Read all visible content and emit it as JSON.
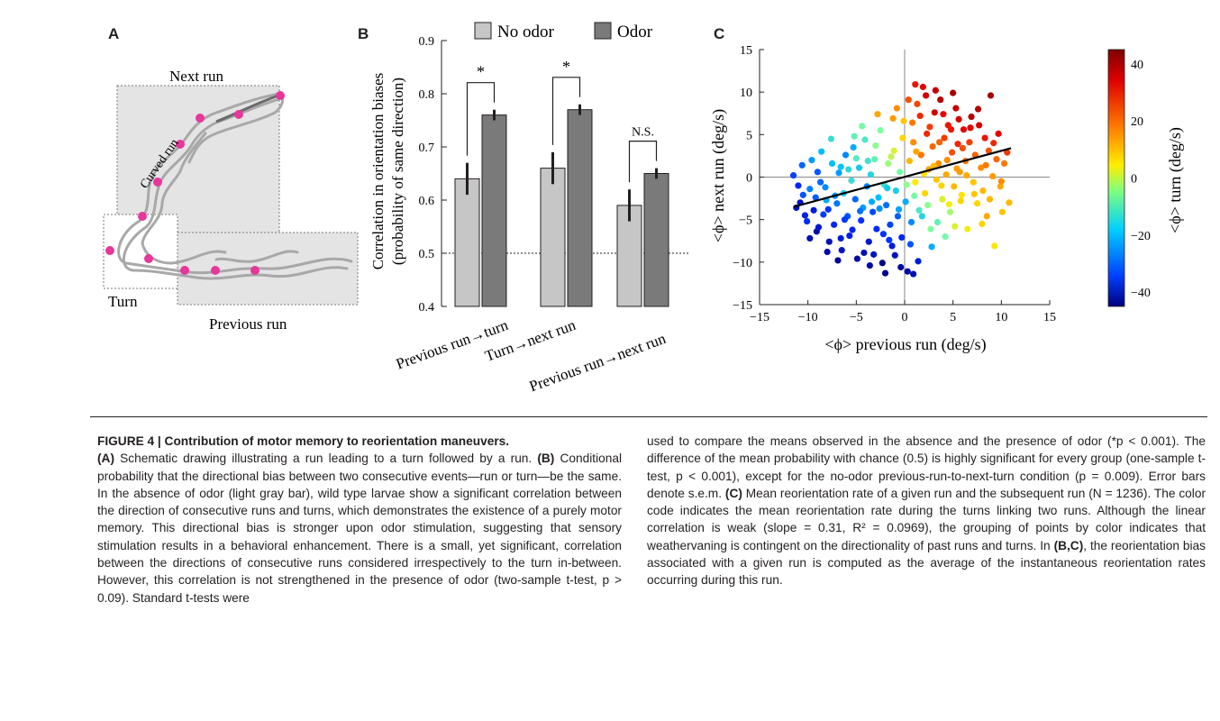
{
  "panels": {
    "a": "A",
    "b": "B",
    "c": "C"
  },
  "panel_a": {
    "next_run": "Next run",
    "curved_run": "Curved run",
    "turn": "Turn",
    "previous_run": "Previous run"
  },
  "panel_b": {
    "y_label_1": "Correlation in orientation biases",
    "y_label_2": "(probability of same direction)",
    "legend": [
      "No odor",
      "Odor"
    ],
    "colors": {
      "no_odor": "#c6c6c6",
      "odor": "#7a7a7a"
    },
    "significance": [
      "*",
      "*",
      "N.S."
    ]
  },
  "panel_c": {
    "xlabel": "<ϕ> previous run (deg/s)",
    "ylabel": "<ϕ> next run (deg/s)",
    "cbar_label": "<ϕ> turn (deg/s)"
  },
  "chart_data": [
    {
      "type": "bar",
      "categories": [
        "Previous run→turn",
        "Turn→next run",
        "Previous run→next run"
      ],
      "series": [
        {
          "name": "No odor",
          "values": [
            0.64,
            0.66,
            0.59
          ],
          "errors": [
            0.03,
            0.03,
            0.03
          ]
        },
        {
          "name": "Odor",
          "values": [
            0.76,
            0.77,
            0.65
          ],
          "errors": [
            0.01,
            0.01,
            0.01
          ]
        }
      ],
      "reference_line": 0.5,
      "ylim": [
        0.4,
        0.9
      ],
      "yticks": [
        "0.4",
        "0.5",
        "0.6",
        "0.7",
        "0.8",
        "0.9"
      ],
      "legend_position": "top"
    },
    {
      "type": "scatter",
      "xlim": [
        -15,
        15
      ],
      "ylim": [
        -15,
        15
      ],
      "xticks": [
        "−15",
        "−10",
        "−5",
        "0",
        "5",
        "10",
        "15"
      ],
      "yticks": [
        "−15",
        "−10",
        "−5",
        "0",
        "5",
        "10",
        "15"
      ],
      "fit_line": {
        "x": [
          -11.5,
          11
        ],
        "y": [
          -3.5,
          3.4
        ]
      },
      "colorbar": {
        "min": -45,
        "max": 45,
        "ticks": [
          "40",
          "20",
          "0",
          "−20",
          "−40"
        ]
      },
      "points": [
        [
          -11.2,
          -3.6,
          -40
        ],
        [
          -10.5,
          -2.1,
          -30
        ],
        [
          -10.1,
          -5.2,
          -35
        ],
        [
          -9.8,
          -1.4,
          -25
        ],
        [
          -9.4,
          -3.9,
          -38
        ],
        [
          -9.1,
          -6.4,
          -42
        ],
        [
          -8.7,
          -0.6,
          -28
        ],
        [
          -8.4,
          -4.4,
          -33
        ],
        [
          -8.1,
          -2.7,
          -20
        ],
        [
          -7.8,
          -7.6,
          -41
        ],
        [
          -7.5,
          1.6,
          -18
        ],
        [
          -7.3,
          -5.6,
          -36
        ],
        [
          -7.0,
          -3.1,
          -26
        ],
        [
          -6.8,
          0.5,
          -22
        ],
        [
          -6.5,
          -8.6,
          -40
        ],
        [
          -6.3,
          -1.9,
          -15
        ],
        [
          -6.1,
          2.6,
          -24
        ],
        [
          -5.9,
          -4.6,
          -30
        ],
        [
          -5.7,
          -6.9,
          -37
        ],
        [
          -5.5,
          -0.4,
          -12
        ],
        [
          -5.3,
          3.5,
          -20
        ],
        [
          -5.1,
          -2.6,
          -28
        ],
        [
          -4.9,
          -9.6,
          -42
        ],
        [
          -4.7,
          1.1,
          -16
        ],
        [
          -4.5,
          -5.1,
          -34
        ],
        [
          -4.3,
          -3.6,
          -22
        ],
        [
          -4.1,
          4.4,
          -10
        ],
        [
          -3.9,
          -1.1,
          -25
        ],
        [
          -3.7,
          -7.6,
          -39
        ],
        [
          -3.5,
          0.3,
          -14
        ],
        [
          -3.3,
          -4.1,
          -31
        ],
        [
          -3.1,
          2.1,
          -8
        ],
        [
          -2.9,
          -6.1,
          -35
        ],
        [
          -2.7,
          -2.4,
          -18
        ],
        [
          -2.5,
          5.5,
          -5
        ],
        [
          -2.3,
          -10.1,
          -44
        ],
        [
          -2.1,
          -0.9,
          -12
        ],
        [
          -1.9,
          -3.3,
          -27
        ],
        [
          -1.7,
          1.6,
          -3
        ],
        [
          -1.5,
          -5.6,
          -32
        ],
        [
          -1.3,
          -8.1,
          -38
        ],
        [
          -1.1,
          3.1,
          2
        ],
        [
          -0.9,
          -1.6,
          -15
        ],
        [
          -0.7,
          -4.6,
          -29
        ],
        [
          -0.5,
          0.6,
          -6
        ],
        [
          -0.3,
          -7.1,
          -36
        ],
        [
          -0.1,
          6.6,
          10
        ],
        [
          0.1,
          -2.9,
          -20
        ],
        [
          0.3,
          -11.1,
          -42
        ],
        [
          0.5,
          1.9,
          12
        ],
        [
          0.7,
          -5.3,
          -24
        ],
        [
          0.9,
          4.1,
          18
        ],
        [
          1.1,
          -0.6,
          5
        ],
        [
          1.3,
          8.6,
          25
        ],
        [
          1.5,
          -3.9,
          -10
        ],
        [
          1.7,
          2.6,
          20
        ],
        [
          1.9,
          10.6,
          32
        ],
        [
          2.1,
          -1.9,
          8
        ],
        [
          2.3,
          5.1,
          28
        ],
        [
          2.5,
          0.9,
          15
        ],
        [
          2.7,
          -6.1,
          -5
        ],
        [
          2.9,
          3.6,
          22
        ],
        [
          3.1,
          7.6,
          35
        ],
        [
          3.3,
          -0.3,
          10
        ],
        [
          3.5,
          1.6,
          18
        ],
        [
          3.7,
          9.1,
          38
        ],
        [
          3.9,
          -2.6,
          2
        ],
        [
          4.1,
          4.6,
          26
        ],
        [
          4.3,
          0.3,
          14
        ],
        [
          4.5,
          6.1,
          30
        ],
        [
          4.7,
          -4.1,
          -2
        ],
        [
          4.9,
          2.9,
          24
        ],
        [
          5.1,
          -1.1,
          12
        ],
        [
          5.3,
          8.1,
          36
        ],
        [
          5.5,
          3.9,
          28
        ],
        [
          5.7,
          0.6,
          16
        ],
        [
          5.9,
          -2.1,
          6
        ],
        [
          6.1,
          5.6,
          32
        ],
        [
          6.3,
          1.9,
          20
        ],
        [
          6.5,
          -6.1,
          4
        ],
        [
          6.7,
          4.1,
          26
        ],
        [
          6.9,
          7.1,
          38
        ],
        [
          7.1,
          -0.6,
          10
        ],
        [
          7.3,
          2.6,
          22
        ],
        [
          7.5,
          -3.1,
          8
        ],
        [
          7.7,
          6.1,
          34
        ],
        [
          7.9,
          1.1,
          18
        ],
        [
          8.1,
          -1.6,
          12
        ],
        [
          8.3,
          4.6,
          30
        ],
        [
          8.5,
          -4.6,
          14
        ],
        [
          8.7,
          3.1,
          24
        ],
        [
          8.9,
          9.6,
          40
        ],
        [
          9.1,
          0.1,
          16
        ],
        [
          9.3,
          -8.1,
          6
        ],
        [
          9.5,
          2.1,
          22
        ],
        [
          9.7,
          5.1,
          32
        ],
        [
          9.9,
          -1.1,
          14
        ],
        [
          10.1,
          -4.1,
          10
        ],
        [
          10.3,
          1.6,
          20
        ],
        [
          10.6,
          2.9,
          26
        ],
        [
          -11.5,
          0.2,
          -32
        ],
        [
          -10.8,
          -3.0,
          -40
        ],
        [
          -10.3,
          -4.5,
          -37
        ],
        [
          -9.6,
          2.0,
          -22
        ],
        [
          -9.2,
          -2.4,
          -29
        ],
        [
          -8.9,
          -5.9,
          -39
        ],
        [
          -8.6,
          3.0,
          -18
        ],
        [
          -8.2,
          -1.2,
          -24
        ],
        [
          -7.9,
          -3.8,
          -34
        ],
        [
          -7.6,
          4.5,
          -12
        ],
        [
          -7.2,
          -2.2,
          -23
        ],
        [
          -6.9,
          -9.8,
          -43
        ],
        [
          -6.6,
          1.2,
          -17
        ],
        [
          -6.2,
          -5.0,
          -33
        ],
        [
          -5.8,
          0.9,
          -13
        ],
        [
          -5.4,
          -6.2,
          -36
        ],
        [
          -5.0,
          2.2,
          -9
        ],
        [
          -4.6,
          -4.0,
          -27
        ],
        [
          -4.2,
          -8.9,
          -41
        ],
        [
          -3.8,
          1.9,
          -11
        ],
        [
          -3.4,
          -2.9,
          -20
        ],
        [
          -3.0,
          3.7,
          -4
        ],
        [
          -2.6,
          -3.7,
          -23
        ],
        [
          -2.2,
          -6.7,
          -34
        ],
        [
          -1.8,
          -1.3,
          -16
        ],
        [
          -1.4,
          2.4,
          0
        ],
        [
          -1.0,
          -9.2,
          -40
        ],
        [
          -0.6,
          -3.8,
          -21
        ],
        [
          -0.2,
          4.6,
          8
        ],
        [
          0.2,
          -0.9,
          -4
        ],
        [
          0.4,
          9.1,
          24
        ],
        [
          0.6,
          -7.9,
          -30
        ],
        [
          0.8,
          6.4,
          20
        ],
        [
          1.0,
          -2.2,
          -6
        ],
        [
          1.2,
          3.0,
          14
        ],
        [
          1.4,
          -9.9,
          -38
        ],
        [
          1.6,
          7.2,
          28
        ],
        [
          1.8,
          -4.6,
          -14
        ],
        [
          2.0,
          0.4,
          6
        ],
        [
          2.2,
          9.6,
          34
        ],
        [
          2.4,
          -3.3,
          -4
        ],
        [
          2.6,
          5.9,
          26
        ],
        [
          2.8,
          -8.2,
          -20
        ],
        [
          3.0,
          1.3,
          12
        ],
        [
          3.2,
          10.2,
          36
        ],
        [
          3.4,
          -5.3,
          -8
        ],
        [
          3.6,
          4.1,
          22
        ],
        [
          3.8,
          -1.0,
          8
        ],
        [
          4.0,
          7.4,
          32
        ],
        [
          4.2,
          -7.0,
          -6
        ],
        [
          4.4,
          2.0,
          18
        ],
        [
          4.6,
          -3.2,
          4
        ],
        [
          4.8,
          5.6,
          30
        ],
        [
          5.0,
          9.9,
          40
        ],
        [
          5.2,
          -5.8,
          2
        ],
        [
          5.4,
          1.0,
          16
        ],
        [
          5.6,
          6.8,
          34
        ],
        [
          5.8,
          -2.8,
          8
        ],
        [
          6.0,
          3.4,
          24
        ],
        [
          6.4,
          0.2,
          14
        ],
        [
          6.8,
          5.8,
          32
        ],
        [
          7.2,
          -2.0,
          10
        ],
        [
          7.6,
          8.0,
          38
        ],
        [
          8.0,
          -5.5,
          8
        ],
        [
          8.4,
          1.4,
          20
        ],
        [
          8.8,
          -2.6,
          12
        ],
        [
          9.2,
          4.0,
          28
        ],
        [
          10.0,
          -0.5,
          18
        ],
        [
          10.8,
          -3.0,
          12
        ],
        [
          -1.2,
          6.9,
          16
        ],
        [
          -2.0,
          -11.3,
          -44
        ],
        [
          -0.4,
          -10.6,
          -43
        ],
        [
          -3.6,
          -10.4,
          -42
        ],
        [
          0.9,
          -11.4,
          -41
        ],
        [
          -5.2,
          4.8,
          -8
        ],
        [
          -6.6,
          -7.2,
          -38
        ],
        [
          -2.8,
          7.4,
          14
        ],
        [
          -0.8,
          8.1,
          18
        ],
        [
          1.1,
          10.9,
          30
        ],
        [
          -4.4,
          6.0,
          -6
        ],
        [
          -3.2,
          -9.1,
          -40
        ],
        [
          -1.6,
          -7.4,
          -34
        ],
        [
          -9.8,
          -7.2,
          -41
        ],
        [
          -8.0,
          -8.8,
          -42
        ],
        [
          -11.0,
          -1.0,
          -36
        ],
        [
          -10.6,
          1.4,
          -28
        ],
        [
          -9.0,
          0.6,
          -30
        ]
      ]
    }
  ],
  "caption_left": {
    "title": "FIGURE 4 | Contribution of motor memory to reorientation maneuvers.",
    "a_tag": "(A)",
    "a_text": " Schematic drawing illustrating a run leading to a turn followed by a run. ",
    "b_tag": "(B)",
    "b_text": " Conditional probability that the directional bias between two consecutive events—run or turn—be the same. In the absence of odor (light gray bar), wild type larvae show a significant correlation between the direction of consecutive runs and turns, which demonstrates the existence of a purely motor memory. This directional bias is stronger upon odor stimulation, suggesting that sensory stimulation results in a behavioral enhancement. There is a small, yet significant, correlation between the directions of consecutive runs considered irrespectively to the turn in-between. However, this correlation is not strengthened in the presence of odor (two-sample t-test, p > 0.09). Standard t-tests were"
  },
  "caption_right": {
    "text1": "used to compare the means observed in the absence and the presence of odor (*p < 0.001). The difference of the mean probability with chance (0.5) is highly significant for every group (one-sample t-test, p < 0.001), except for the no-odor previous-run-to-next-turn condition (p = 0.009). Error bars denote s.e.m. ",
    "c_tag": "(C)",
    "text2": " Mean reorientation rate of a given run and the subsequent run (N = 1236). The color code indicates the mean reorientation rate during the turns linking two runs. Although the linear correlation is weak (slope = 0.31, R² = 0.0969), the grouping of points by color indicates that weathervaning is contingent on the directionality of past runs and turns. In ",
    "bc_tag": "(B,C)",
    "text3": ", the reorientation bias associated with a given run is computed as the average of the instantaneous reorientation rates occurring during this run."
  }
}
